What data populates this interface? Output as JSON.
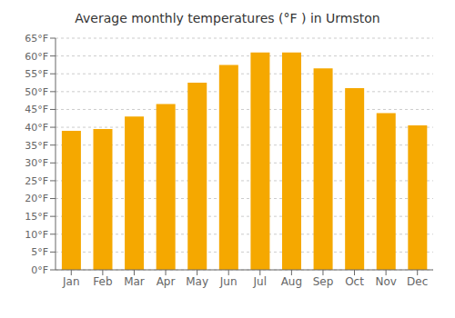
{
  "chart_data": {
    "type": "bar",
    "title": "Average monthly temperatures (°F ) in Urmston",
    "categories": [
      "Jan",
      "Feb",
      "Mar",
      "Apr",
      "May",
      "Jun",
      "Jul",
      "Aug",
      "Sep",
      "Oct",
      "Nov",
      "Dec"
    ],
    "values": [
      39.0,
      39.5,
      43.0,
      46.5,
      52.5,
      57.5,
      61.0,
      61.0,
      56.5,
      51.0,
      44.0,
      40.5
    ],
    "color": "#F5A800",
    "ylim": [
      0,
      65
    ],
    "yticks": [
      {
        "value": 0,
        "label": "0°F"
      },
      {
        "value": 5,
        "label": "5°F"
      },
      {
        "value": 10,
        "label": "10°F"
      },
      {
        "value": 15,
        "label": "15°F"
      },
      {
        "value": 20,
        "label": "20°F"
      },
      {
        "value": 25,
        "label": "25°F"
      },
      {
        "value": 30,
        "label": "30°F"
      },
      {
        "value": 35,
        "label": "35°F"
      },
      {
        "value": 40,
        "label": "40°F"
      },
      {
        "value": 45,
        "label": "45°F"
      },
      {
        "value": 50,
        "label": "50°F"
      },
      {
        "value": 55,
        "label": "55°F"
      },
      {
        "value": 60,
        "label": "60°F"
      },
      {
        "value": 65,
        "label": "65°F"
      }
    ],
    "grid": true
  }
}
